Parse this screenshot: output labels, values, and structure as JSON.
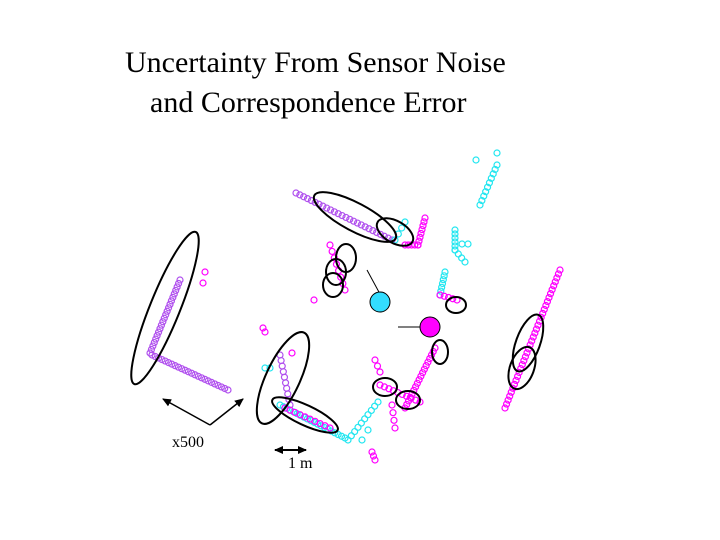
{
  "title": {
    "line1": "Uncertainty From Sensor Noise",
    "line2": "and Correspondence Error"
  },
  "labels": {
    "scale_factor": "x500",
    "scale_bar": "1 m"
  }
}
